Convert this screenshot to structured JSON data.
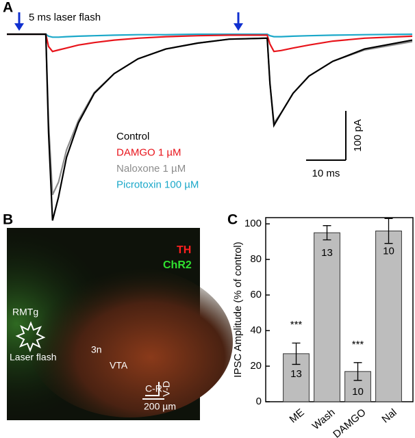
{
  "panel_labels": [
    "A",
    "B",
    "C"
  ],
  "chart_data": [
    {
      "type": "line",
      "annotation": "5 ms laser flash",
      "x": [
        0,
        9.8,
        10.5,
        11.5,
        13,
        15,
        18,
        22,
        27,
        33,
        40,
        48,
        56,
        65.5,
        66.2,
        67.2,
        69,
        72,
        76,
        82,
        90,
        102
      ],
      "xlim": [
        0,
        102
      ],
      "ylim": [
        -400,
        50
      ],
      "series": [
        {
          "name": "Control",
          "color": "#000000",
          "values": [
            0,
            0,
            -200,
            -378,
            -330,
            -250,
            -180,
            -120,
            -80,
            -50,
            -30,
            -18,
            -10,
            -8,
            -100,
            -185,
            -160,
            -120,
            -85,
            -55,
            -30,
            -12
          ]
        },
        {
          "name": "DAMGO 1 µM",
          "color": "#e8141b",
          "values": [
            0,
            0,
            -25,
            -35,
            -32,
            -28,
            -22,
            -17,
            -12,
            -8,
            -5,
            -3,
            -2,
            -2,
            -20,
            -35,
            -33,
            -28,
            -22,
            -14,
            -8,
            -4
          ]
        },
        {
          "name": "Naloxone 1 µM",
          "color": "#8c8c8c",
          "values": [
            0,
            0,
            -180,
            -326,
            -300,
            -235,
            -175,
            -118,
            -80,
            -50,
            -30,
            -18,
            -10,
            -8,
            -100,
            -180,
            -160,
            -120,
            -85,
            -55,
            -32,
            -15
          ]
        },
        {
          "name": "Picrotoxin 100 µM",
          "color": "#1ba8c9",
          "values": [
            0,
            0,
            -4,
            -6,
            -6,
            -5,
            -4,
            -3,
            -2,
            -1,
            -1,
            0,
            0,
            0,
            -3,
            -5,
            -5,
            -4,
            -3,
            -2,
            -1,
            0
          ]
        }
      ],
      "scale_x": {
        "value": 10,
        "label": "10 ms"
      },
      "scale_y": {
        "value": 100,
        "label": "100 pA"
      }
    },
    {
      "type": "bar",
      "y_label": "IPSC Amplitude (% of control)",
      "categories": [
        "ME",
        "Wash",
        "DAMGO",
        "Nal"
      ],
      "values": [
        27,
        95,
        17,
        96
      ],
      "errors": [
        6,
        4,
        5,
        7
      ],
      "n": [
        13,
        13,
        10,
        10
      ],
      "significance": [
        "***",
        null,
        "***",
        null
      ],
      "color": "#bdbdbd",
      "ylim": [
        0,
        103.5
      ],
      "yticks": [
        0,
        20,
        40,
        60,
        80,
        100
      ]
    }
  ],
  "image": {
    "labels": [
      "TH",
      "ChR2",
      "RMTg",
      "Laser flash",
      "3n",
      "VTA",
      "C-R",
      "V-D"
    ],
    "scale_bar": "200 µm"
  }
}
